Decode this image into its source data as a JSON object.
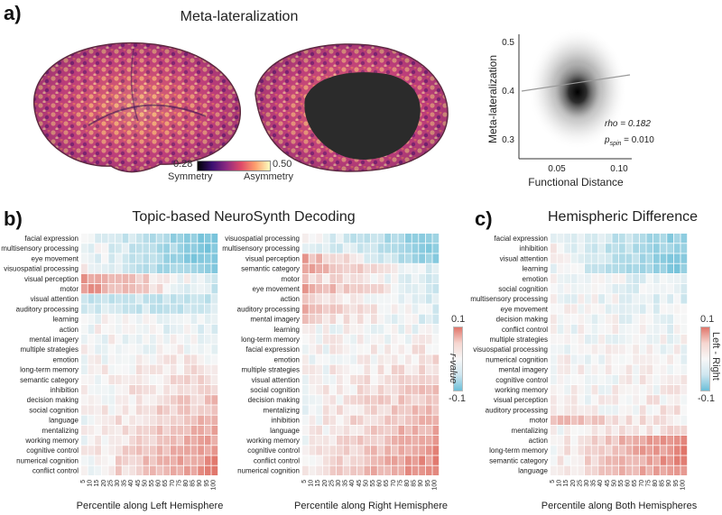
{
  "panel_a": {
    "label": "a)",
    "title": "Meta-lateralization",
    "colorbar": {
      "min": "0.28",
      "max": "0.50",
      "left_label": "Symmetry",
      "right_label": "Asymmetry"
    },
    "scatter": {
      "ylabel": "Meta-lateralization",
      "xlabel": "Functional Distance",
      "yticks": [
        "0.5",
        "0.4",
        "0.3"
      ],
      "xticks": [
        "0.05",
        "0.10"
      ],
      "stat_rho": "rho = 0.182",
      "stat_p_main": "p",
      "stat_p_sub": "spin",
      "stat_p_val": " = 0.010"
    }
  },
  "panel_b": {
    "label": "b)",
    "title": "Topic-based NeuroSynth Decoding",
    "left_rows": [
      "facial expression",
      "multisensory processing",
      "eye movement",
      "visuospatial processing",
      "visual perception",
      "motor",
      "visual attention",
      "auditory processing",
      "learning",
      "action",
      "mental imagery",
      "multiple strategies",
      "emotion",
      "long-term memory",
      "semantic category",
      "inhibition",
      "decision making",
      "social cognition",
      "language",
      "mentalizing",
      "working memory",
      "cognitive control",
      "numerical cognition",
      "conflict control"
    ],
    "right_rows": [
      "visuospatial processing",
      "multisensory processing",
      "visual perception",
      "semantic category",
      "motor",
      "eye movement",
      "action",
      "auditory processing",
      "mental imagery",
      "learning",
      "long-term memory",
      "facial expression",
      "emotion",
      "multiple strategies",
      "visual attention",
      "social cognition",
      "decision making",
      "mentalizing",
      "inhibition",
      "language",
      "working memory",
      "cognitive control",
      "conflict control",
      "numerical cognition"
    ],
    "xlabel_left": "Percentile along Left Hemisphere",
    "xlabel_right": "Percentile along Right Hemisphere",
    "colorbar": {
      "max": "0.1",
      "min": "-0.1",
      "label": "r-value"
    }
  },
  "panel_c": {
    "label": "c)",
    "title": "Hemispheric Difference",
    "rows": [
      "facial expression",
      "inhibition",
      "visual attention",
      "learning",
      "emotion",
      "social cognition",
      "multisensory processing",
      "eye movement",
      "decision making",
      "conflict control",
      "multiple strategies",
      "visuospatial processing",
      "numerical cognition",
      "mental imagery",
      "cognitive control",
      "working memory",
      "visual perception",
      "auditory processing",
      "motor",
      "mentalizing",
      "action",
      "long-term memory",
      "semantic category",
      "language"
    ],
    "xlabel": "Percentile along Both Hemispheres",
    "colorbar": {
      "max": "0.1",
      "min": "-0.1",
      "label": "Left - Right"
    }
  },
  "percentiles": [
    "5",
    "10",
    "15",
    "20",
    "25",
    "30",
    "35",
    "40",
    "45",
    "50",
    "55",
    "60",
    "65",
    "70",
    "75",
    "80",
    "85",
    "90",
    "95",
    "100"
  ]
}
